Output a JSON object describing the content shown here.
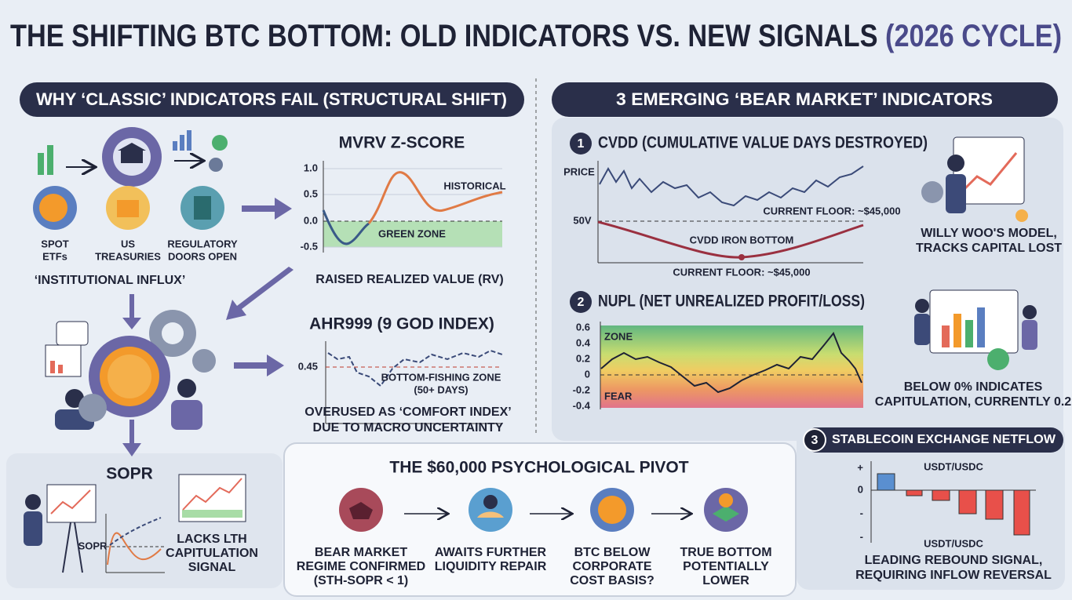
{
  "title": {
    "main": "THE SHIFTING BTC BOTTOM: OLD INDICATORS VS. NEW SIGNALS",
    "highlight": "(2026 CYCLE)"
  },
  "left": {
    "header": "WHY ‘CLASSIC’ INDICATORS FAIL (STRUCTURAL SHIFT)",
    "icons": [
      [
        "SPOT",
        "ETFs"
      ],
      [
        "US",
        "TREASURIES"
      ],
      [
        "REGULATORY",
        "DOORS OPEN"
      ]
    ],
    "influx": "‘INSTITUTIONAL INFLUX’",
    "sopr": {
      "title": "SOPR",
      "axis": "SOPR",
      "caption": [
        "LACKS LTH",
        "CAPITULATION",
        "SIGNAL"
      ]
    }
  },
  "mvrv": {
    "title": "MVRV Z-SCORE",
    "yticks": [
      "1.0",
      "0.5",
      "0.0",
      "-0.5"
    ],
    "historical": "HISTORICAL",
    "zone": "GREEN ZONE",
    "caption": "RAISED REALIZED VALUE (RV)"
  },
  "ahr": {
    "title": "AHR999 (9 GOD INDEX)",
    "tick": "0.45",
    "zone": [
      "BOTTOM-FISHING ZONE",
      "(50+ DAYS)"
    ],
    "caption": [
      "OVERUSED AS ‘COMFORT INDEX’",
      "DUE TO MACRO UNCERTAINTY"
    ]
  },
  "right": {
    "header": "3 EMERGING ‘BEAR MARKET’ INDICATORS",
    "cvdd": {
      "number": "1",
      "title": "CVDD (CUMULATIVE VALUE DAYS DESTROYED)",
      "price": "PRICE",
      "axis": "50V",
      "floor_top": "CURRENT FLOOR: ~$45,000",
      "bottom": "CVDD IRON BOTTOM",
      "floor_bottom": "CURRENT FLOOR: ~$45,000",
      "caption": [
        "WILLY WOO'S MODEL,",
        "TRACKS CAPITAL LOST"
      ]
    },
    "nupl": {
      "number": "2",
      "title": "NUPL (NET UNREALIZED PROFIT/LOSS)",
      "yticks": [
        "0.6",
        "0.4",
        "0.2",
        "0",
        "-0.2",
        "-0.4"
      ],
      "zone": "ZONE",
      "fear": "FEAR",
      "caption": [
        "BELOW 0% INDICATES",
        "CAPITULATION, CURRENTLY 0.2"
      ]
    },
    "netflow": {
      "number": "3",
      "title": "STABLECOIN EXCHANGE NETFLOW",
      "yticks": [
        "+",
        "0",
        "-",
        "-"
      ],
      "label_top": "USDT/USDC",
      "label_bottom": "USDT/USDC",
      "caption": [
        "LEADING REBOUND SIGNAL,",
        "REQUIRING INFLOW REVERSAL"
      ]
    }
  },
  "pivot": {
    "title": "THE $60,000 PSYCHOLOGICAL PIVOT",
    "steps": [
      [
        "BEAR MARKET",
        "REGIME CONFIRMED",
        "(STH-SOPR < 1)"
      ],
      [
        "AWAITS FURTHER",
        "LIQUIDITY REPAIR"
      ],
      [
        "BTC BELOW",
        "CORPORATE",
        "COST BASIS?"
      ],
      [
        "TRUE BOTTOM",
        "POTENTIALLY",
        "LOWER"
      ]
    ]
  }
}
